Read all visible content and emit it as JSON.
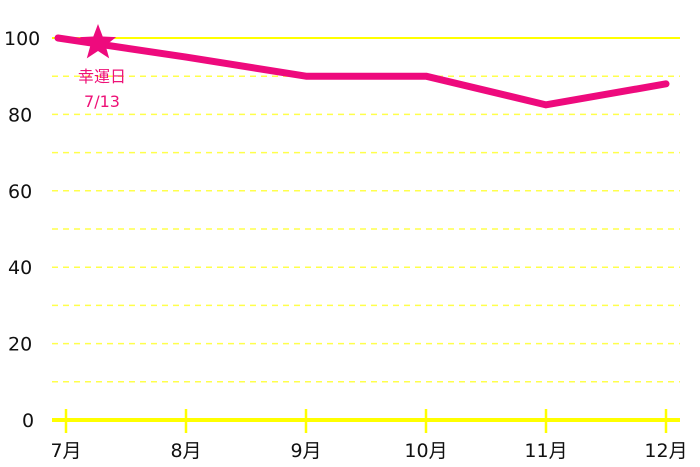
{
  "chart_data": {
    "type": "line",
    "categories": [
      "7月",
      "8月",
      "9月",
      "10月",
      "11月",
      "12月"
    ],
    "series": [
      {
        "values": [
          100,
          95,
          90,
          90,
          82.5,
          88
        ]
      }
    ],
    "yticks": [
      0,
      20,
      40,
      60,
      80,
      100
    ],
    "ylim": [
      0,
      100
    ],
    "grid": "horizontal dashed every 10",
    "annotation": {
      "label": "幸運日",
      "date": "7/13",
      "position": 0.3,
      "value": 98,
      "icon": "star-icon"
    },
    "colors": {
      "line": "#ee0a7d",
      "grid": "#ffff00",
      "text": "#111111"
    }
  }
}
